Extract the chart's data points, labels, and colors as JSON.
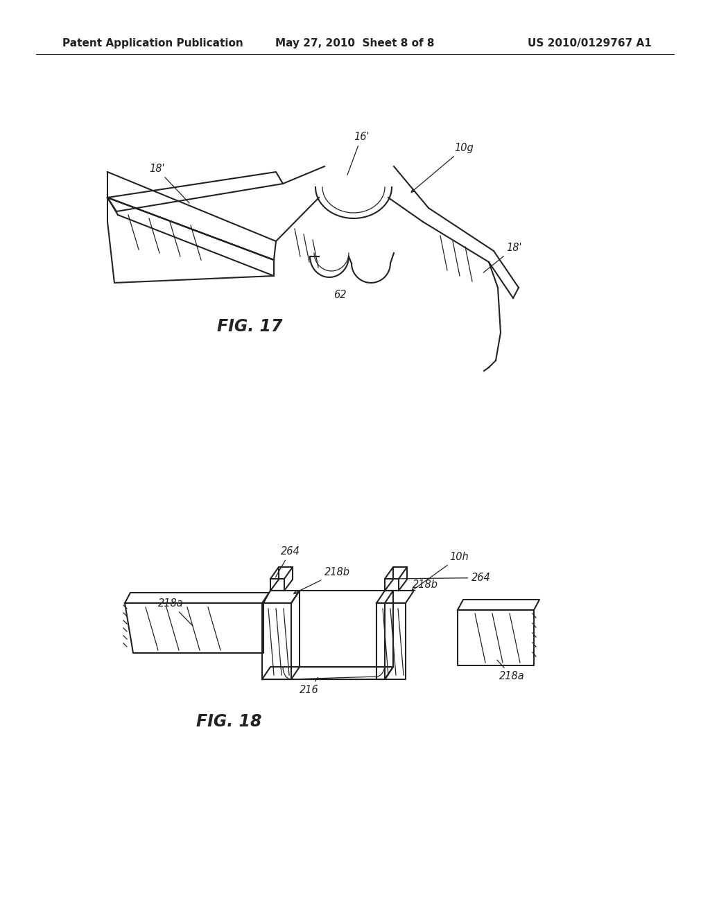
{
  "background_color": "#ffffff",
  "page_header": {
    "left": "Patent Application Publication",
    "center": "May 27, 2010  Sheet 8 of 8",
    "right": "US 2010/0129767 A1",
    "fontsize": 11
  }
}
